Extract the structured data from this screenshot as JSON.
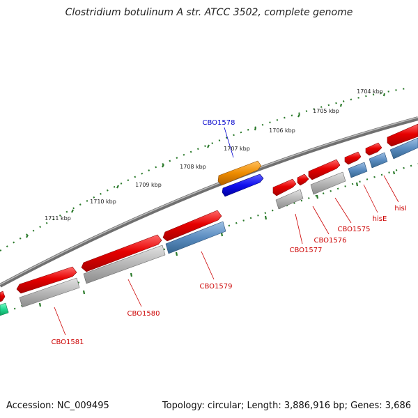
{
  "title": "Clostridium botulinum A str. ATCC 3502, complete genome",
  "footer": {
    "accession": "Accession: NC_009495",
    "topology": "Topology: circular; Length: 3,886,916 bp; Genes: 3,686"
  },
  "ruler_labels": [
    "1704 kbp",
    "1705 kbp",
    "1706 kbp",
    "1707 kbp",
    "1708 kbp",
    "1709 kbp",
    "1710 kbp",
    "1711 kbp"
  ],
  "gene_labels": [
    "CBO1578",
    "CBO1577",
    "CBO1576",
    "CBO1575",
    "hisE",
    "hisI",
    "CBO1579",
    "CBO1580",
    "CBO1581"
  ],
  "colors": {
    "backbone": "#7a7a7a",
    "cds": "#e00000",
    "gene_gray": "#b4b4b4",
    "gene_steelblue": "#5a8cc0",
    "highlight_orange": "#e88a00",
    "highlight_blue": "#1010e0",
    "ruler_ticks": "#2a7a2a",
    "label_red": "#cc0000",
    "label_blue": "#0000cc",
    "edge_green": "#20d890"
  }
}
